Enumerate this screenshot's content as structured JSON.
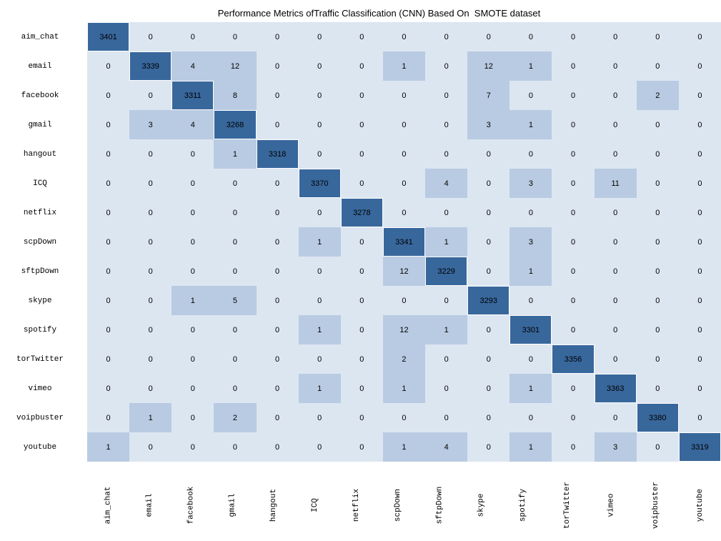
{
  "title": "Performance Metrics ofTraffic Classification (CNN) Based On  SMOTE dataset",
  "chart_data": {
    "type": "heatmap",
    "title": "Performance Metrics ofTraffic Classification (CNN) Based On  SMOTE dataset",
    "description": "Confusion matrix: rows = true class, columns = predicted class",
    "categories": [
      "aim_chat",
      "email",
      "facebook",
      "gmail",
      "hangout",
      "ICQ",
      "netflix",
      "scpDown",
      "sftpDown",
      "skype",
      "spotify",
      "torTwitter",
      "vimeo",
      "voipbuster",
      "youtube"
    ],
    "matrix": [
      [
        3401,
        0,
        0,
        0,
        0,
        0,
        0,
        0,
        0,
        0,
        0,
        0,
        0,
        0,
        0
      ],
      [
        0,
        3339,
        4,
        12,
        0,
        0,
        0,
        1,
        0,
        12,
        1,
        0,
        0,
        0,
        0
      ],
      [
        0,
        0,
        3311,
        8,
        0,
        0,
        0,
        0,
        0,
        7,
        0,
        0,
        0,
        2,
        0
      ],
      [
        0,
        3,
        4,
        3268,
        0,
        0,
        0,
        0,
        0,
        3,
        1,
        0,
        0,
        0,
        0
      ],
      [
        0,
        0,
        0,
        1,
        3318,
        0,
        0,
        0,
        0,
        0,
        0,
        0,
        0,
        0,
        0
      ],
      [
        0,
        0,
        0,
        0,
        0,
        3370,
        0,
        0,
        4,
        0,
        3,
        0,
        11,
        0,
        0
      ],
      [
        0,
        0,
        0,
        0,
        0,
        0,
        3278,
        0,
        0,
        0,
        0,
        0,
        0,
        0,
        0
      ],
      [
        0,
        0,
        0,
        0,
        0,
        1,
        0,
        3341,
        1,
        0,
        3,
        0,
        0,
        0,
        0
      ],
      [
        0,
        0,
        0,
        0,
        0,
        0,
        0,
        12,
        3229,
        0,
        1,
        0,
        0,
        0,
        0
      ],
      [
        0,
        0,
        1,
        5,
        0,
        0,
        0,
        0,
        0,
        3293,
        0,
        0,
        0,
        0,
        0
      ],
      [
        0,
        0,
        0,
        0,
        0,
        1,
        0,
        12,
        1,
        0,
        3301,
        0,
        0,
        0,
        0
      ],
      [
        0,
        0,
        0,
        0,
        0,
        0,
        0,
        2,
        0,
        0,
        0,
        3356,
        0,
        0,
        0
      ],
      [
        0,
        0,
        0,
        0,
        0,
        1,
        0,
        1,
        0,
        0,
        1,
        0,
        3363,
        0,
        0
      ],
      [
        0,
        1,
        0,
        2,
        0,
        0,
        0,
        0,
        0,
        0,
        0,
        0,
        0,
        3380,
        0
      ],
      [
        1,
        0,
        0,
        0,
        0,
        0,
        0,
        1,
        4,
        0,
        1,
        0,
        3,
        0,
        3319
      ]
    ],
    "colors": {
      "zero_cell": "#dce6f1",
      "low_cell": "#b9cbe2",
      "diagonal_cell": "#38679c",
      "cell_text": "#000000",
      "background": "#ffffff"
    },
    "color_rule": "value 0 -> zero_cell, 1..999 -> low_cell, >=1000 -> diagonal_cell",
    "legend": "none",
    "grid": "off"
  }
}
